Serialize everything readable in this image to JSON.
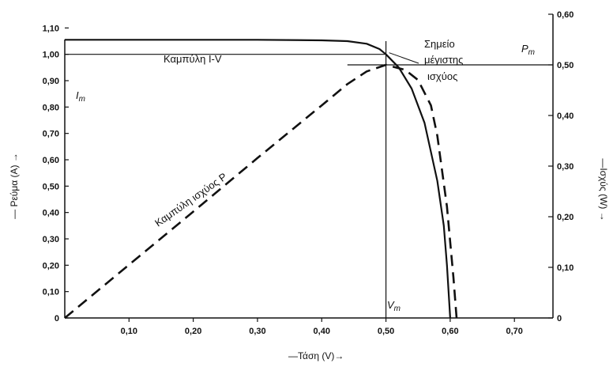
{
  "chart_data": {
    "type": "line",
    "title": "",
    "xlabel": "—Τάση (V)→",
    "ylabel_left": "— Ρεύμα (A) →",
    "ylabel_right": "—Ισχύς (W) →",
    "xlim": [
      0,
      0.76
    ],
    "ylim_left": [
      0,
      1.2
    ],
    "ylim_right": [
      0,
      0.6
    ],
    "x_ticks": [
      "0,10",
      "0,20",
      "0,30",
      "0,40",
      "0,50",
      "0,60",
      "0,70"
    ],
    "x_tick_values": [
      0.1,
      0.2,
      0.3,
      0.4,
      0.5,
      0.6,
      0.7
    ],
    "y_left_ticks": [
      "0",
      "0,10",
      "0,20",
      "0,30",
      "0,40",
      "0,50",
      "0,60",
      "0,70",
      "0,80",
      "0,90",
      "1,00",
      "1,10"
    ],
    "y_left_tick_values": [
      0,
      0.1,
      0.2,
      0.3,
      0.4,
      0.5,
      0.6,
      0.7,
      0.8,
      0.9,
      1.0,
      1.1
    ],
    "y_right_ticks": [
      "0",
      "0,10",
      "0,20",
      "0,30",
      "0,40",
      "0,50",
      "0,60"
    ],
    "y_right_tick_values": [
      0,
      0.1,
      0.2,
      0.3,
      0.4,
      0.5,
      0.6
    ],
    "series": [
      {
        "name": "Καμπύλη I-V",
        "axis": "left",
        "style": "solid",
        "x": [
          0,
          0.1,
          0.2,
          0.3,
          0.4,
          0.44,
          0.47,
          0.49,
          0.5,
          0.52,
          0.54,
          0.56,
          0.58,
          0.59,
          0.595,
          0.6
        ],
        "y": [
          1.055,
          1.055,
          1.055,
          1.055,
          1.053,
          1.05,
          1.04,
          1.02,
          1.0,
          0.95,
          0.87,
          0.74,
          0.52,
          0.35,
          0.2,
          0.0
        ]
      },
      {
        "name": "Καμπύλη ισχύος P",
        "axis": "right",
        "style": "dashed",
        "x": [
          0,
          0.1,
          0.2,
          0.3,
          0.4,
          0.44,
          0.47,
          0.5,
          0.53,
          0.55,
          0.57,
          0.58,
          0.595,
          0.605,
          0.61
        ],
        "y": [
          0,
          0.105,
          0.21,
          0.316,
          0.42,
          0.462,
          0.487,
          0.5,
          0.49,
          0.47,
          0.42,
          0.36,
          0.22,
          0.08,
          0.0
        ]
      }
    ],
    "reference_lines": {
      "Im": 1.0,
      "Vm": 0.5,
      "Pm": 0.5
    },
    "annotations": {
      "iv_curve": "Καμπύλη Ι-V",
      "power_curve": "Καμπύλη ισχύος P",
      "max_point_line1": "Σημείο",
      "max_point_line2": "μέγιστης",
      "max_point_line3": "ισχύος",
      "im": "I",
      "im_sub": "m",
      "vm": "V",
      "vm_sub": "m",
      "pm": "P",
      "pm_sub": "m"
    }
  }
}
